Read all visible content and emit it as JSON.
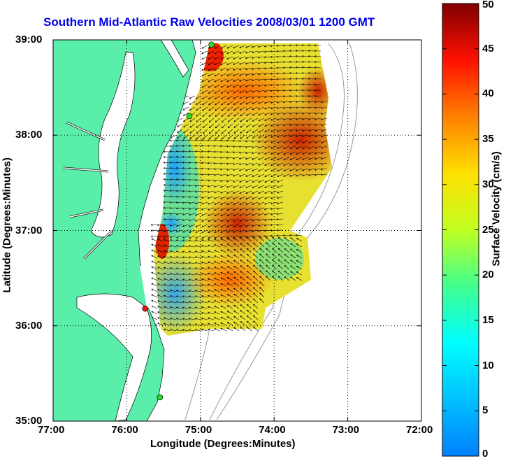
{
  "map": {
    "title": "Southern Mid-Atlantic Raw Velocities 2008/03/01 1200 GMT",
    "x_label": "Longitude (Degrees:Minutes)",
    "y_label": "Latitude (Degrees:Minutes)",
    "x_ticks": [
      "77:00",
      "76:00",
      "75:00",
      "74:00",
      "73:00",
      "72:00"
    ],
    "y_ticks": [
      "39:00",
      "38:00",
      "37:00",
      "36:00",
      "35:00"
    ],
    "colorbar": {
      "label": "Surface Velocity (cm/s)",
      "ticks": [
        "50",
        "45",
        "40",
        "35",
        "30",
        "25",
        "20",
        "15",
        "10",
        "5",
        "0"
      ],
      "min": 0,
      "max": 50,
      "colormap": "jet"
    },
    "land_color": "#59eeaa",
    "grid": "dotted",
    "site_markers": [
      {
        "color": "#22dd22",
        "lon": -74.85,
        "lat": 38.95
      },
      {
        "color": "#22dd22",
        "lon": -75.15,
        "lat": 38.2
      },
      {
        "color": "#ee1111",
        "lon": -75.75,
        "lat": 36.18
      },
      {
        "color": "#22dd22",
        "lon": -75.55,
        "lat": 35.25
      }
    ]
  }
}
